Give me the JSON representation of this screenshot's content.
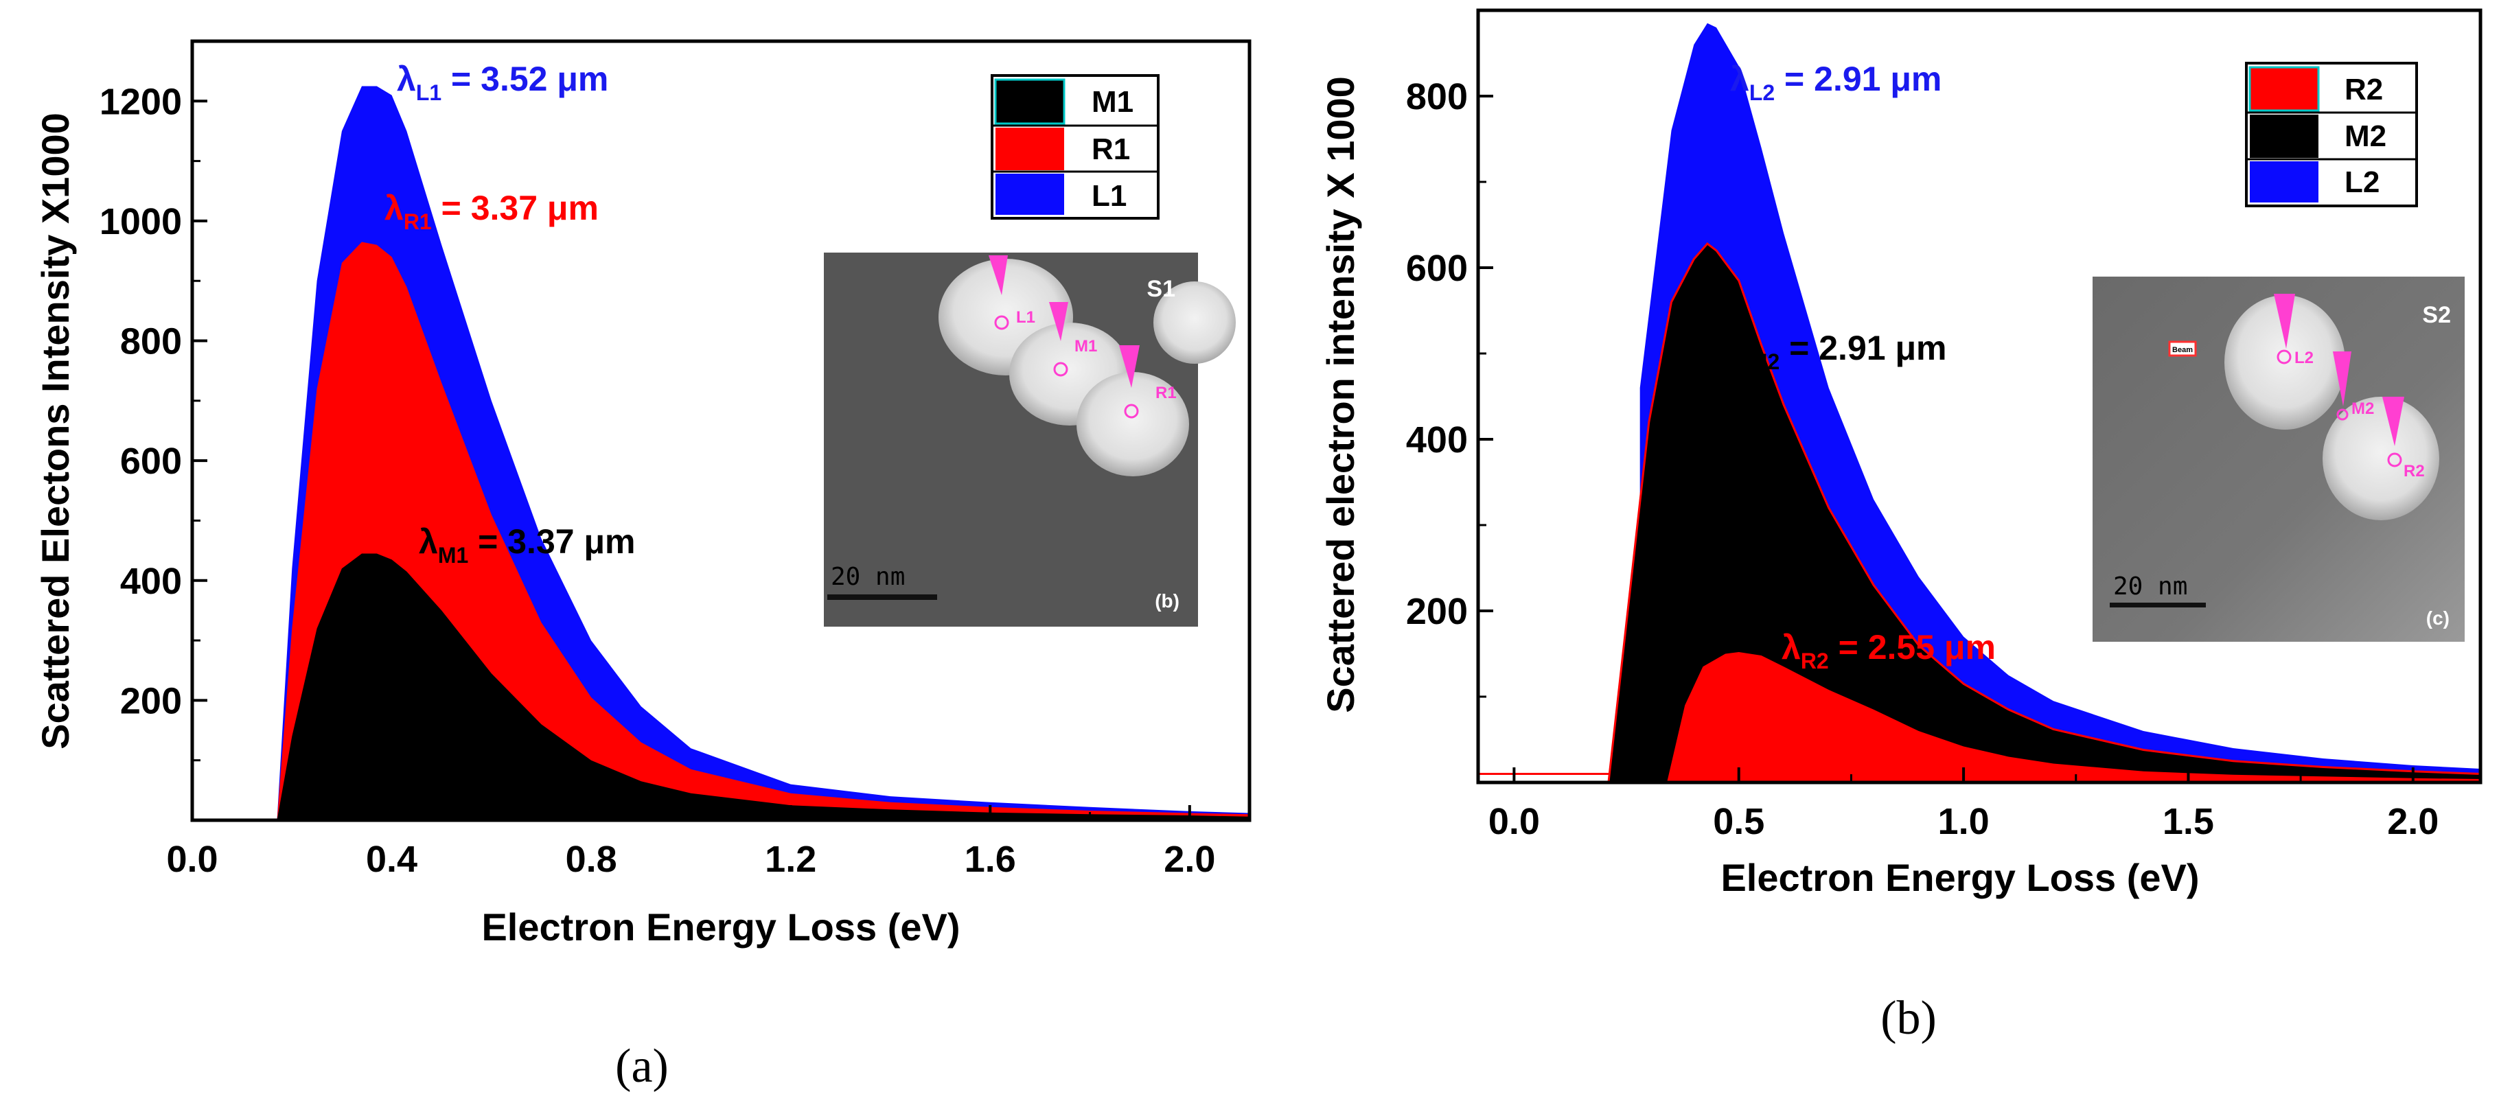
{
  "chart_data": [
    {
      "type": "area",
      "xlabel": "Electron Energy Loss (eV)",
      "ylabel": "Scattered Electons Intensity X1000",
      "xlim": [
        0.0,
        2.12
      ],
      "ylim": [
        0,
        1300
      ],
      "xticks": [
        "0.0",
        "0.4",
        "0.8",
        "1.2",
        "1.6",
        "2.0"
      ],
      "xtick_values": [
        0.0,
        0.4,
        0.8,
        1.2,
        1.6,
        2.0
      ],
      "yticks": [
        "200",
        "400",
        "600",
        "800",
        "1000",
        "1200"
      ],
      "ytick_values": [
        200,
        400,
        600,
        800,
        1000,
        1200
      ],
      "x": [
        0.17,
        0.2,
        0.25,
        0.3,
        0.34,
        0.37,
        0.4,
        0.43,
        0.5,
        0.6,
        0.7,
        0.8,
        0.9,
        1.0,
        1.2,
        1.4,
        1.6,
        1.8,
        2.0,
        2.12
      ],
      "series": [
        {
          "name": "L1",
          "color": "#0a0aff",
          "values": [
            0,
            420,
            900,
            1150,
            1225,
            1225,
            1210,
            1150,
            960,
            700,
            470,
            300,
            190,
            120,
            60,
            40,
            30,
            22,
            15,
            12
          ]
        },
        {
          "name": "R1",
          "color": "#ff0000",
          "values": [
            0,
            320,
            720,
            930,
            965,
            960,
            940,
            890,
            730,
            510,
            330,
            205,
            130,
            85,
            45,
            30,
            22,
            16,
            12,
            10
          ]
        },
        {
          "name": "M1",
          "color": "#000000",
          "values": [
            0,
            140,
            320,
            420,
            445,
            445,
            435,
            415,
            350,
            245,
            160,
            100,
            65,
            45,
            25,
            18,
            13,
            10,
            8,
            6
          ]
        }
      ],
      "legend": {
        "position": "top-right",
        "entries": [
          "M1",
          "R1",
          "L1"
        ]
      },
      "annotations": [
        {
          "id": "L1",
          "main": "λ",
          "sub": "L1",
          "rest": " = 3.52 μm",
          "color": "#1a1aee"
        },
        {
          "id": "R1",
          "main": "λ",
          "sub": "R1",
          "rest": " = 3.37 μm",
          "color": "#ff0000"
        },
        {
          "id": "M1",
          "main": "λ",
          "sub": "M1",
          "rest": " = 3.37 μm",
          "color": "#000000"
        }
      ],
      "inset": {
        "corner_label": "S1",
        "sub_label": "(b)",
        "scale_bar": "20 nm",
        "markers": [
          "L1",
          "M1",
          "R1"
        ]
      },
      "caption": "(a)"
    },
    {
      "type": "area",
      "xlabel": "Electron Energy Loss (eV)",
      "ylabel": "Scattered electron intensity X 1000",
      "xlim": [
        -0.08,
        2.15
      ],
      "ylim": [
        0,
        900
      ],
      "xticks": [
        "0.0",
        "0.5",
        "1.0",
        "1.5",
        "2.0"
      ],
      "xtick_values": [
        0.0,
        0.5,
        1.0,
        1.5,
        2.0
      ],
      "yticks": [
        "200",
        "400",
        "600",
        "800"
      ],
      "ytick_values": [
        200,
        400,
        600,
        800
      ],
      "series": [
        {
          "name": "L2",
          "color": "#0a0aff",
          "x": [
            0.21,
            0.28,
            0.28,
            0.35,
            0.4,
            0.43,
            0.45,
            0.5,
            0.55,
            0.6,
            0.7,
            0.8,
            0.9,
            1.0,
            1.1,
            1.2,
            1.4,
            1.6,
            1.8,
            2.0,
            2.15
          ],
          "values": [
            0,
            320,
            460,
            760,
            860,
            885,
            880,
            835,
            740,
            640,
            460,
            330,
            240,
            170,
            125,
            95,
            60,
            40,
            28,
            20,
            16
          ]
        },
        {
          "name": "M2",
          "color": "#000000",
          "x": [
            0.21,
            0.3,
            0.35,
            0.4,
            0.43,
            0.45,
            0.5,
            0.55,
            0.6,
            0.7,
            0.8,
            0.9,
            1.0,
            1.1,
            1.2,
            1.4,
            1.6,
            1.8,
            2.0,
            2.15
          ],
          "values": [
            0,
            420,
            560,
            610,
            628,
            620,
            585,
            510,
            440,
            320,
            230,
            160,
            115,
            85,
            62,
            38,
            25,
            18,
            13,
            10
          ]
        },
        {
          "name": "R2",
          "color": "#ff0000",
          "x": [
            0.34,
            0.38,
            0.42,
            0.47,
            0.5,
            0.55,
            0.6,
            0.7,
            0.8,
            0.9,
            1.0,
            1.1,
            1.2,
            1.4,
            1.6,
            1.8,
            2.0,
            2.15
          ],
          "values": [
            0,
            90,
            135,
            150,
            152,
            148,
            135,
            108,
            85,
            60,
            42,
            30,
            22,
            13,
            9,
            7,
            5,
            4
          ]
        }
      ],
      "baseline": {
        "color": "#ff0000",
        "value": 10
      },
      "legend": {
        "position": "top-right",
        "entries": [
          "R2",
          "M2",
          "L2"
        ]
      },
      "annotations": [
        {
          "id": "L2",
          "main": "λ",
          "sub": "L2",
          "rest": " = 2.91 μm",
          "color": "#1a1aee"
        },
        {
          "id": "M2",
          "main": "λ",
          "sub": "M2",
          "rest": " = 2.91 μm",
          "color": "#000000"
        },
        {
          "id": "R2",
          "main": "λ",
          "sub": "R2",
          "rest": " = 2.55 μm",
          "color": "#ff0000"
        }
      ],
      "inset": {
        "corner_label": "S2",
        "sub_label": "(c)",
        "scale_bar": "20 nm",
        "markers": [
          "L2",
          "M2",
          "R2"
        ],
        "beam_label": "Beam"
      },
      "caption": "(b)"
    }
  ]
}
